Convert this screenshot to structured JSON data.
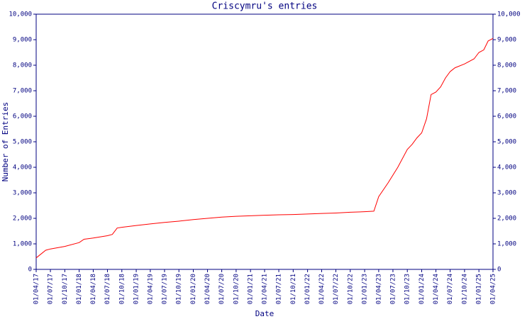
{
  "chart_data": {
    "type": "line",
    "title": "Criscymru's entries",
    "xlabel": "Date",
    "ylabel": "Number of Entries",
    "xlim": [
      "01/04/17",
      "01/04/25"
    ],
    "xticks": [
      "01/04/17",
      "01/07/17",
      "01/10/17",
      "01/01/18",
      "01/04/18",
      "01/07/18",
      "01/10/18",
      "01/01/19",
      "01/04/19",
      "01/07/19",
      "01/10/19",
      "01/01/20",
      "01/04/20",
      "01/07/20",
      "01/10/20",
      "01/01/21",
      "01/04/21",
      "01/07/21",
      "01/10/21",
      "01/01/22",
      "01/04/22",
      "01/07/22",
      "01/10/22",
      "01/01/23",
      "01/04/23",
      "01/07/23",
      "01/10/23",
      "01/01/24",
      "01/04/24",
      "01/07/24",
      "01/10/24",
      "01/01/25",
      "01/04/25"
    ],
    "ylim": [
      0,
      10000
    ],
    "yticks": [
      0,
      {
        "value": 1000,
        "label": "1,000"
      },
      {
        "value": 2000,
        "label": "2,000"
      },
      {
        "value": 3000,
        "label": "3,000"
      },
      {
        "value": 4000,
        "label": "4,000"
      },
      {
        "value": 5000,
        "label": "5,000"
      },
      {
        "value": 6000,
        "label": "6,000"
      },
      {
        "value": 7000,
        "label": "7,000"
      },
      {
        "value": 8000,
        "label": "8,000"
      },
      {
        "value": 9000,
        "label": "9,000"
      },
      {
        "value": 10000,
        "label": "10,000"
      }
    ],
    "x": [
      "01/04/17",
      "01/06/17",
      "01/07/17",
      "01/10/17",
      "01/01/18",
      "01/02/18",
      "01/04/18",
      "01/07/18",
      "01/08/18",
      "01/09/18",
      "01/10/18",
      "01/01/19",
      "01/04/19",
      "01/07/19",
      "01/10/19",
      "01/01/20",
      "01/04/20",
      "01/07/20",
      "01/10/20",
      "01/01/21",
      "01/04/21",
      "01/07/21",
      "01/10/21",
      "01/01/22",
      "01/04/22",
      "01/07/22",
      "01/10/22",
      "01/01/23",
      "01/03/23",
      "01/04/23",
      "01/06/23",
      "01/08/23",
      "01/10/23",
      "01/11/23",
      "01/12/23",
      "01/01/24",
      "01/02/24",
      "01/03/24",
      "01/04/24",
      "01/05/24",
      "01/06/24",
      "01/07/24",
      "01/08/24",
      "01/10/24",
      "01/12/24",
      "01/01/25",
      "01/02/25",
      "01/03/25",
      "01/04/25"
    ],
    "series": [
      {
        "name": "entries",
        "color": "#ff0000",
        "values": [
          450,
          750,
          800,
          900,
          1050,
          1180,
          1230,
          1320,
          1370,
          1620,
          1650,
          1720,
          1780,
          1840,
          1890,
          1950,
          2000,
          2050,
          2080,
          2100,
          2120,
          2140,
          2150,
          2170,
          2190,
          2210,
          2240,
          2260,
          2280,
          2850,
          3400,
          4000,
          4700,
          4900,
          5150,
          5350,
          5900,
          6850,
          6950,
          7150,
          7500,
          7750,
          7900,
          8050,
          8250,
          8500,
          8600,
          8950,
          9050
        ]
      }
    ]
  }
}
